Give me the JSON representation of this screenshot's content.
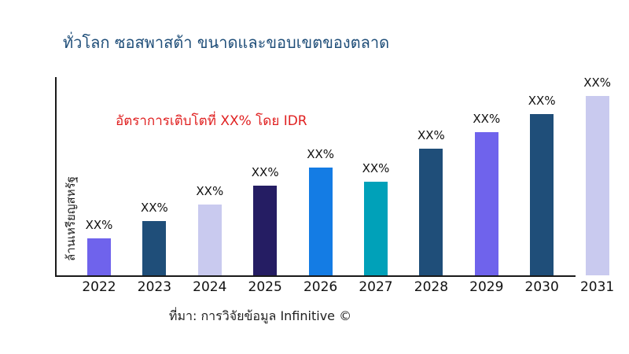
{
  "page": {
    "background_color": "#ffffff"
  },
  "title": {
    "text": "ทั่วโลก ซอสพาสต้า ขนาดและขอบเขตของตลาด",
    "color": "#1f4e79"
  },
  "annotation": {
    "text": "อัตราการเติบโตที่ XX% โดย IDR",
    "color": "#e02121"
  },
  "y_axis": {
    "label": "ล้านเหรียญสหรัฐ"
  },
  "source": {
    "text": "ที่มา: การวิจัยข้อมูล Infinitive ©"
  },
  "chart_data": {
    "type": "bar",
    "title": "ทั่วโลก ซอสพาสต้า ขนาดและขอบเขตของตลาด",
    "xlabel": "",
    "ylabel": "ล้านเหรียญสหรัฐ",
    "categories": [
      "2022",
      "2023",
      "2024",
      "2025",
      "2026",
      "2027",
      "2028",
      "2029",
      "2030",
      "2031"
    ],
    "series": [
      {
        "name": "market-size",
        "values_relative_pct_of_max": [
          20.6,
          30.3,
          39.5,
          50.0,
          60.1,
          52.2,
          70.6,
          79.8,
          89.9,
          100.0
        ]
      }
    ],
    "bar_labels": [
      "XX%",
      "XX%",
      "XX%",
      "XX%",
      "XX%",
      "XX%",
      "XX%",
      "XX%",
      "XX%",
      "XX%"
    ],
    "bar_colors": [
      "#6f63ec",
      "#1f4e79",
      "#c9caef",
      "#251d63",
      "#147ce4",
      "#00a1b9",
      "#1f4e79",
      "#6f63ec",
      "#1f4e79",
      "#c9caef"
    ],
    "annotation": "อัตราการเติบโตที่ XX% โดย IDR",
    "source": "ที่มา: การวิจัยข้อมูล Infinitive ©",
    "grid": false,
    "legend": false,
    "axis_color": "#1a1a1a"
  }
}
